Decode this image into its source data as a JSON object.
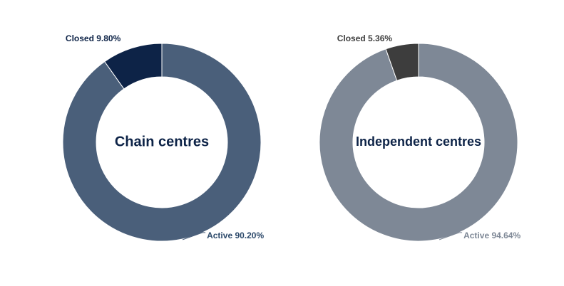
{
  "chart_data": [
    {
      "type": "pie",
      "title": "Chain centres",
      "labels": [
        "Active",
        "Closed"
      ],
      "values": [
        90.2,
        9.8
      ],
      "slice_labels": [
        "Active 90.20%",
        "Closed 9.80%"
      ],
      "colors": {
        "Active": "#4a5f7a",
        "Closed": "#0d2347",
        "title": "#0d2347",
        "active_label": "#2d4a6b",
        "closed_label": "#0d2347"
      },
      "donut": true
    },
    {
      "type": "pie",
      "title": "Independent centres",
      "labels": [
        "Active",
        "Closed"
      ],
      "values": [
        94.64,
        5.36
      ],
      "slice_labels": [
        "Active 94.64%",
        "Closed 5.36%"
      ],
      "colors": {
        "Active": "#7e8896",
        "Closed": "#3d3d3d",
        "title": "#0d2347",
        "active_label": "#7e8896",
        "closed_label": "#3d3d3d"
      },
      "donut": true
    }
  ]
}
